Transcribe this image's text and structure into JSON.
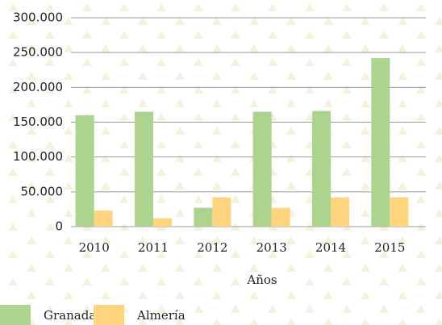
{
  "chart_data": {
    "type": "bar",
    "x_label": "Años",
    "categories": [
      "2010",
      "2011",
      "2012",
      "2013",
      "2014",
      "2015"
    ],
    "series": [
      {
        "name": "Granada",
        "color": "#acd48e",
        "values": [
          160000,
          165000,
          27000,
          165000,
          166000,
          242000
        ]
      },
      {
        "name": "Almería",
        "color": "#ffd47f",
        "values": [
          23000,
          12000,
          42000,
          27000,
          42000,
          42000
        ]
      }
    ],
    "ylim": [
      0,
      300000
    ],
    "yticks": [
      0,
      {
        "value": 50000,
        "label": "50.000"
      },
      {
        "value": 100000,
        "label": "100.000"
      },
      {
        "value": 150000,
        "label": "150.000"
      },
      {
        "value": 200000,
        "label": "200.000"
      },
      {
        "value": 250000,
        "label": "250.000"
      },
      {
        "value": 300000,
        "label": "300.000"
      }
    ],
    "grid": true,
    "legend": "bottom-left"
  }
}
